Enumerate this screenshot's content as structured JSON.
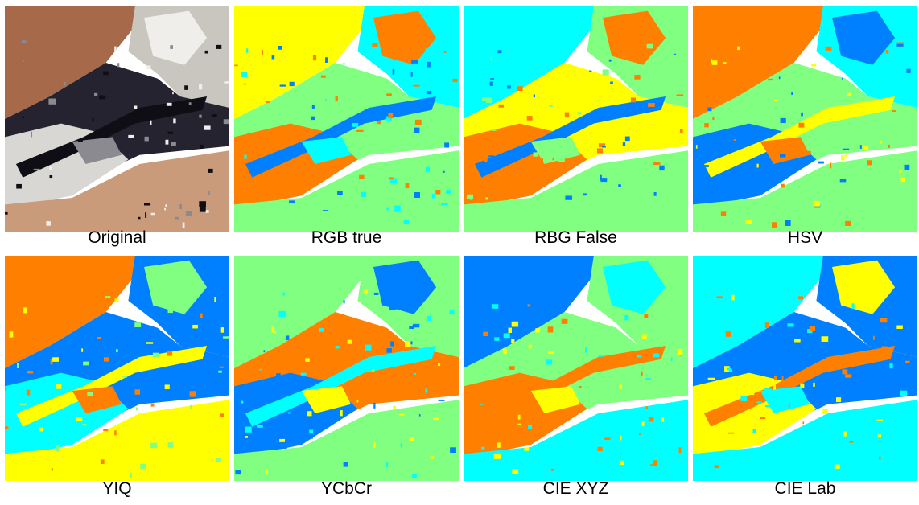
{
  "figure": {
    "panels": [
      {
        "caption": "Original"
      },
      {
        "caption": "RGB true"
      },
      {
        "caption": "RBG False"
      },
      {
        "caption": "HSV"
      },
      {
        "caption": "YIQ"
      },
      {
        "caption": "YCbCr"
      },
      {
        "caption": "CIE XYZ"
      },
      {
        "caption": "CIE Lab"
      }
    ]
  }
}
